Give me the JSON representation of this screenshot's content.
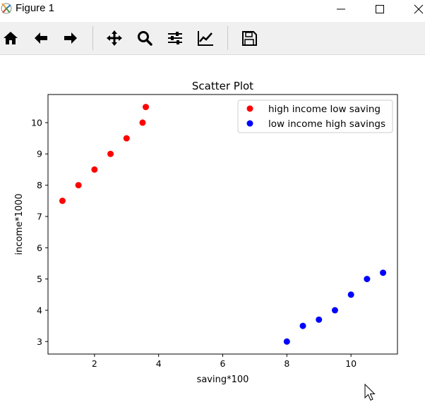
{
  "window": {
    "title": "Figure 1",
    "icons": {
      "app": "matplotlib-app-icon",
      "minimize": "minimize-icon",
      "maximize": "maximize-icon",
      "close": "close-icon"
    }
  },
  "toolbar": {
    "tools": [
      {
        "name": "home",
        "icon": "home-icon"
      },
      {
        "name": "back",
        "icon": "arrow-left-icon"
      },
      {
        "name": "forward",
        "icon": "arrow-right-icon"
      },
      {
        "name": "pan",
        "icon": "move-arrows-icon"
      },
      {
        "name": "zoom",
        "icon": "magnifier-icon"
      },
      {
        "name": "configure-subplots",
        "icon": "sliders-icon"
      },
      {
        "name": "edit-axis",
        "icon": "line-chart-icon"
      },
      {
        "name": "save",
        "icon": "floppy-disk-icon"
      }
    ]
  },
  "chart_data": {
    "type": "scatter",
    "title": "Scatter Plot",
    "xlabel": "saving*100",
    "ylabel": "income*1000",
    "xlim": [
      0.55,
      11.45
    ],
    "ylim": [
      2.6,
      10.9
    ],
    "xticks": [
      2,
      4,
      6,
      8,
      10
    ],
    "yticks": [
      3,
      4,
      5,
      6,
      7,
      8,
      9,
      10
    ],
    "grid": false,
    "legend_position": "top-right",
    "series": [
      {
        "name": "high income low saving",
        "color": "#ff0000",
        "x": [
          1,
          1.5,
          2,
          2.5,
          3,
          3.5,
          3.6
        ],
        "y": [
          7.5,
          8,
          8.5,
          9,
          9.5,
          10,
          10.5
        ]
      },
      {
        "name": "low income high savings",
        "color": "#0000ff",
        "x": [
          8,
          8.5,
          9,
          9.5,
          10,
          10.5,
          11
        ],
        "y": [
          3,
          3.5,
          3.7,
          4,
          4.5,
          5,
          5.2
        ]
      }
    ]
  }
}
